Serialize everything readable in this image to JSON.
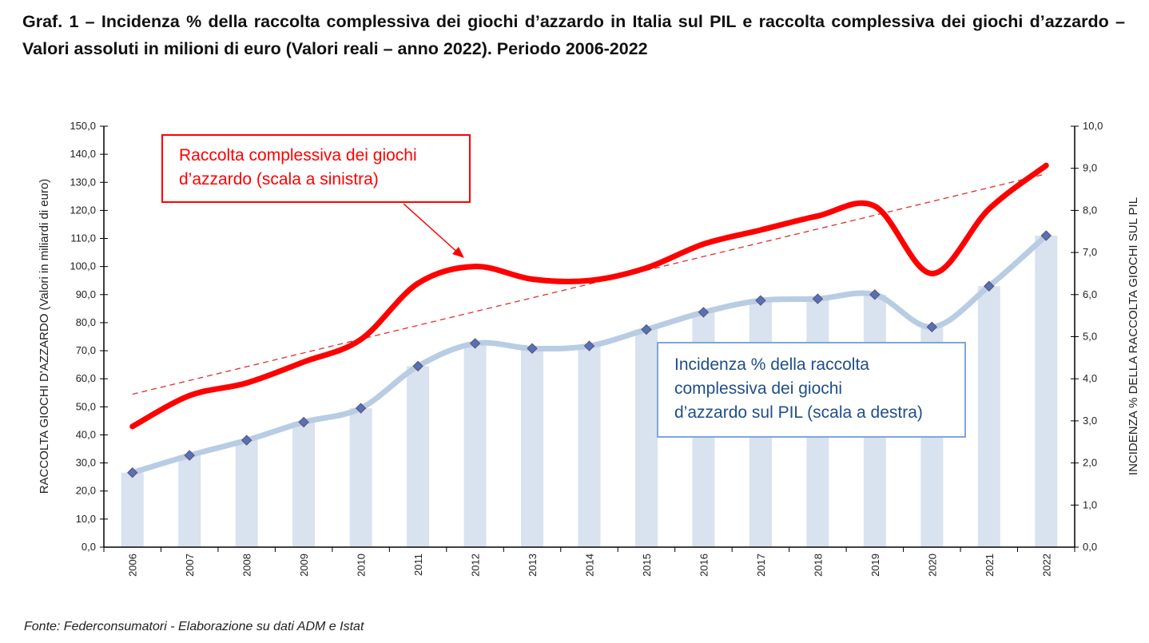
{
  "title": "Graf. 1 – Incidenza % della raccolta complessiva dei giochi d’azzardo in Italia sul PIL e raccolta complessiva dei giochi d’azzardo – Valori assoluti in milioni di euro (Valori reali – anno 2022). Periodo 2006-2022",
  "source": "Fonte: Federconsumatori - Elaborazione su dati ADM e Istat",
  "chart_data": {
    "type": "bar+line",
    "categories": [
      "2006",
      "2007",
      "2008",
      "2009",
      "2010",
      "2011",
      "2012",
      "2013",
      "2014",
      "2015",
      "2016",
      "2017",
      "2018",
      "2019",
      "2020",
      "2021",
      "2022"
    ],
    "left_axis": {
      "label": "RACCOLTA GIOCHI D'AZZARDO (Valori in miliardi di euro)",
      "ylim": [
        0,
        150
      ],
      "ticks": [
        "0,0",
        "10,0",
        "20,0",
        "30,0",
        "40,0",
        "50,0",
        "60,0",
        "70,0",
        "80,0",
        "90,0",
        "100,0",
        "110,0",
        "120,0",
        "130,0",
        "140,0",
        "150,0"
      ]
    },
    "right_axis": {
      "label": "INCIDENZA % DELLA RACCOLTA GIOCHI SUL PIL",
      "ylim": [
        0,
        10
      ],
      "ticks": [
        "0,0",
        "1,0",
        "2,0",
        "3,0",
        "4,0",
        "5,0",
        "6,0",
        "7,0",
        "8,0",
        "9,0",
        "10,0"
      ]
    },
    "series": [
      {
        "name": "Raccolta complessiva dei giochi d’azzardo (scala a sinistra)",
        "type": "line",
        "axis": "left",
        "color": "#ff0000",
        "values": [
          43,
          54,
          58.5,
          66,
          74,
          94,
          100,
          95.5,
          95,
          99.5,
          108,
          113,
          118,
          121.5,
          97.5,
          120.5,
          136
        ]
      },
      {
        "name": "Incidenza % della raccolta complessiva dei giochi d’azzardo sul PIL (scala a destra)",
        "type": "bar+line",
        "axis": "right",
        "color": "#b8cce4",
        "values": [
          1.77,
          2.18,
          2.54,
          2.97,
          3.3,
          4.3,
          4.84,
          4.72,
          4.78,
          5.17,
          5.58,
          5.86,
          5.9,
          6.0,
          5.23,
          6.2,
          7.4
        ]
      }
    ],
    "trendline": {
      "axis": "left",
      "color": "#e03030",
      "style": "dashed",
      "from": 54.5,
      "to": 133
    },
    "annotations": {
      "red": [
        "Raccolta complessiva dei giochi",
        "d’azzardo (scala a sinistra)"
      ],
      "blue": [
        "Incidenza % della raccolta",
        "complessiva dei giochi",
        "d’azzardo sul PIL (scala a destra)"
      ]
    },
    "grid": false
  }
}
